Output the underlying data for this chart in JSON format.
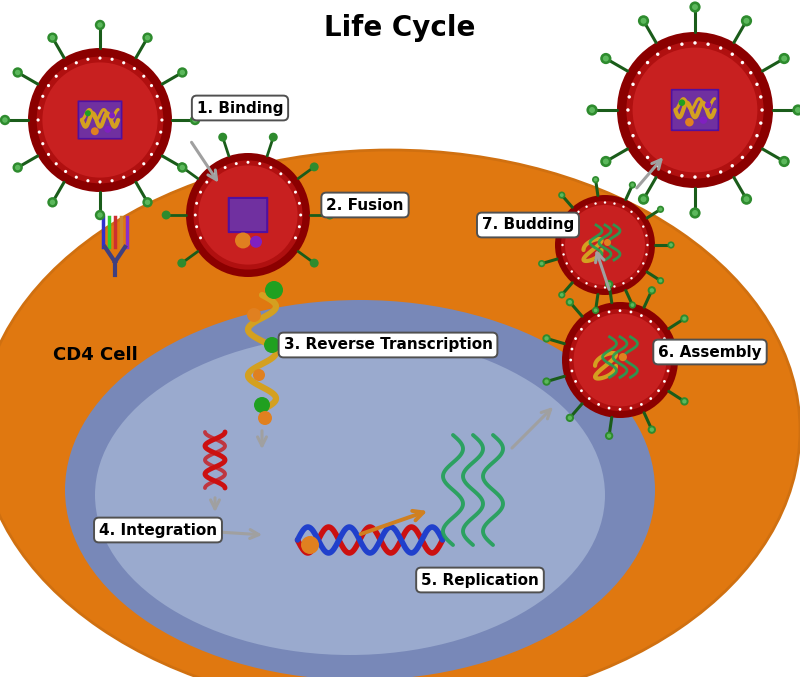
{
  "title": "Life Cycle",
  "title_fontsize": 20,
  "title_fontweight": "bold",
  "background_color": "#ffffff",
  "labels": {
    "1": "1. Binding",
    "2": "2. Fusion",
    "3": "3. Reverse Transcription",
    "4": "4. Integration",
    "5": "5. Replication",
    "6": "6. Assembly",
    "7": "7. Budding",
    "cd4": "CD4 Cell"
  },
  "colors": {
    "bg": "#ffffff",
    "cell_orange": "#E07810",
    "cell_orange2": "#D07010",
    "nucleus_blue": "#7888B8",
    "nucleus_blue2": "#9AAACE",
    "virus_outer": "#8B0000",
    "virus_mid": "#B01010",
    "virus_inner": "#C82020",
    "spike_stem": "#1A5C1A",
    "spike_tip": "#2E8B2E",
    "spike_tip2": "#5CB85C",
    "capsid": "#7030A0",
    "capsid_edge": "#5010A0",
    "rna_yellow": "#D4A020",
    "rna_green": "#20A055",
    "dna_red": "#CC1010",
    "dna_blue": "#2040CC",
    "orange_dot": "#E08020",
    "green_dot": "#20A020",
    "purple_dot": "#8020C0",
    "arrow_grey": "#A0A0A0",
    "arrow_orange": "#D08020",
    "label_edge": "#505050"
  }
}
